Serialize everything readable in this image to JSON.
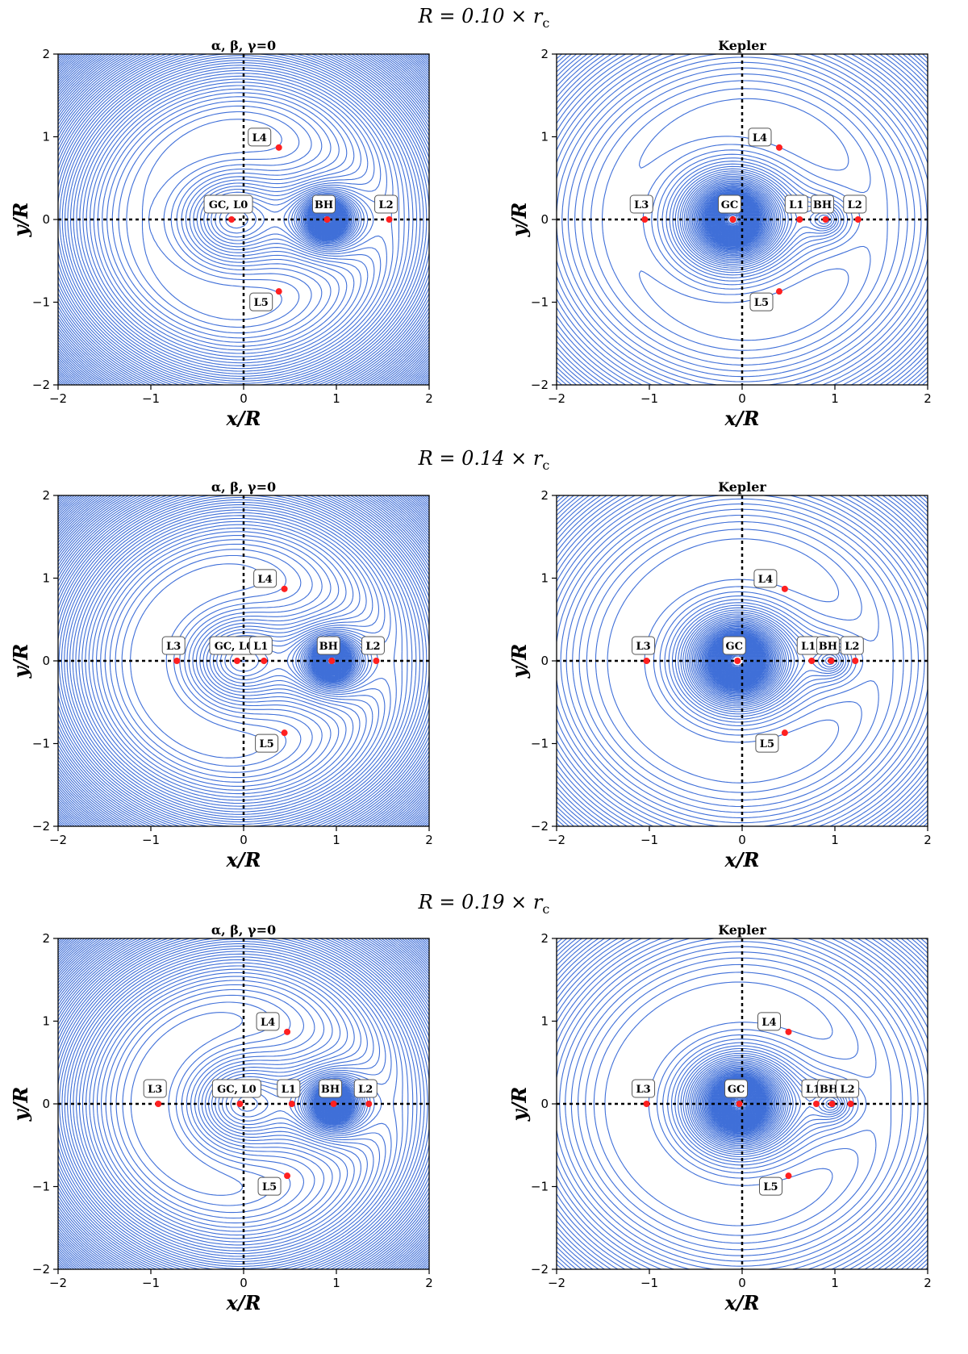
{
  "chart_data": [
    {
      "type": "contour",
      "row_title": "R = 0.10 × r_c",
      "title": "α, β, γ=0",
      "xlabel": "x/R",
      "ylabel": "y/R",
      "xlim": [
        -2,
        2
      ],
      "ylim": [
        -2,
        2
      ],
      "xticks": [
        "−2",
        "−1",
        "0",
        "1",
        "2"
      ],
      "yticks": [
        "−2",
        "−1",
        "0",
        "1",
        "2"
      ],
      "contour_color": "#3f6fd8",
      "point_color": "#ff2020",
      "points": [
        {
          "label": "GC, L0",
          "x": -0.13,
          "y": 0
        },
        {
          "label": "BH",
          "x": 0.9,
          "y": 0
        },
        {
          "label": "L2",
          "x": 1.57,
          "y": 0
        },
        {
          "label": "L4",
          "x": 0.38,
          "y": 0.87
        },
        {
          "label": "L5",
          "x": 0.38,
          "y": -0.87
        }
      ]
    },
    {
      "type": "contour",
      "row_title": "R = 0.10 × r_c",
      "title": "Kepler",
      "xlabel": "x/R",
      "ylabel": "y/R",
      "xlim": [
        -2,
        2
      ],
      "ylim": [
        -2,
        2
      ],
      "xticks": [
        "−2",
        "−1",
        "0",
        "1",
        "2"
      ],
      "yticks": [
        "−2",
        "−1",
        "0",
        "1",
        "2"
      ],
      "contour_color": "#3f6fd8",
      "point_color": "#ff2020",
      "points": [
        {
          "label": "L3",
          "x": -1.05,
          "y": 0
        },
        {
          "label": "GC",
          "x": -0.1,
          "y": 0
        },
        {
          "label": "L1",
          "x": 0.62,
          "y": 0
        },
        {
          "label": "BH",
          "x": 0.9,
          "y": 0
        },
        {
          "label": "L2",
          "x": 1.25,
          "y": 0
        },
        {
          "label": "L4",
          "x": 0.4,
          "y": 0.87
        },
        {
          "label": "L5",
          "x": 0.4,
          "y": -0.87
        }
      ]
    },
    {
      "type": "contour",
      "row_title": "R = 0.14 × r_c",
      "title": "α, β, γ=0",
      "xlabel": "x/R",
      "ylabel": "y/R",
      "xlim": [
        -2,
        2
      ],
      "ylim": [
        -2,
        2
      ],
      "xticks": [
        "−2",
        "−1",
        "0",
        "1",
        "2"
      ],
      "yticks": [
        "−2",
        "−1",
        "0",
        "1",
        "2"
      ],
      "contour_color": "#3f6fd8",
      "point_color": "#ff2020",
      "points": [
        {
          "label": "L3",
          "x": -0.72,
          "y": 0
        },
        {
          "label": "GC, L0",
          "x": -0.07,
          "y": 0
        },
        {
          "label": "L1",
          "x": 0.22,
          "y": 0
        },
        {
          "label": "BH",
          "x": 0.95,
          "y": 0
        },
        {
          "label": "L2",
          "x": 1.43,
          "y": 0
        },
        {
          "label": "L4",
          "x": 0.44,
          "y": 0.87
        },
        {
          "label": "L5",
          "x": 0.44,
          "y": -0.87
        }
      ]
    },
    {
      "type": "contour",
      "row_title": "R = 0.14 × r_c",
      "title": "Kepler",
      "xlabel": "x/R",
      "ylabel": "y/R",
      "xlim": [
        -2,
        2
      ],
      "ylim": [
        -2,
        2
      ],
      "xticks": [
        "−2",
        "−1",
        "0",
        "1",
        "2"
      ],
      "yticks": [
        "−2",
        "−1",
        "0",
        "1",
        "2"
      ],
      "contour_color": "#3f6fd8",
      "point_color": "#ff2020",
      "points": [
        {
          "label": "L3",
          "x": -1.03,
          "y": 0
        },
        {
          "label": "GC",
          "x": -0.05,
          "y": 0
        },
        {
          "label": "L1",
          "x": 0.75,
          "y": 0
        },
        {
          "label": "BH",
          "x": 0.96,
          "y": 0
        },
        {
          "label": "L2",
          "x": 1.22,
          "y": 0
        },
        {
          "label": "L4",
          "x": 0.46,
          "y": 0.87
        },
        {
          "label": "L5",
          "x": 0.46,
          "y": -0.87
        }
      ]
    },
    {
      "type": "contour",
      "row_title": "R = 0.19 × r_c",
      "title": "α, β, γ=0",
      "xlabel": "x/R",
      "ylabel": "y/R",
      "xlim": [
        -2,
        2
      ],
      "ylim": [
        -2,
        2
      ],
      "xticks": [
        "−2",
        "−1",
        "0",
        "1",
        "2"
      ],
      "yticks": [
        "−2",
        "−1",
        "0",
        "1",
        "2"
      ],
      "contour_color": "#3f6fd8",
      "point_color": "#ff2020",
      "points": [
        {
          "label": "L3",
          "x": -0.92,
          "y": 0
        },
        {
          "label": "GC, L0",
          "x": -0.04,
          "y": 0
        },
        {
          "label": "L1",
          "x": 0.52,
          "y": 0
        },
        {
          "label": "BH",
          "x": 0.97,
          "y": 0
        },
        {
          "label": "L2",
          "x": 1.35,
          "y": 0
        },
        {
          "label": "L4",
          "x": 0.47,
          "y": 0.87
        },
        {
          "label": "L5",
          "x": 0.47,
          "y": -0.87
        }
      ]
    },
    {
      "type": "contour",
      "row_title": "R = 0.19 × r_c",
      "title": "Kepler",
      "xlabel": "x/R",
      "ylabel": "y/R",
      "xlim": [
        -2,
        2
      ],
      "ylim": [
        -2,
        2
      ],
      "xticks": [
        "−2",
        "−1",
        "0",
        "1",
        "2"
      ],
      "yticks": [
        "−2",
        "−1",
        "0",
        "1",
        "2"
      ],
      "contour_color": "#3f6fd8",
      "point_color": "#ff2020",
      "points": [
        {
          "label": "L3",
          "x": -1.03,
          "y": 0
        },
        {
          "label": "GC",
          "x": -0.03,
          "y": 0
        },
        {
          "label": "L1",
          "x": 0.8,
          "y": 0
        },
        {
          "label": "BH",
          "x": 0.97,
          "y": 0
        },
        {
          "label": "L2",
          "x": 1.17,
          "y": 0
        },
        {
          "label": "L4",
          "x": 0.5,
          "y": 0.87
        },
        {
          "label": "L5",
          "x": 0.5,
          "y": -0.87
        }
      ]
    }
  ]
}
